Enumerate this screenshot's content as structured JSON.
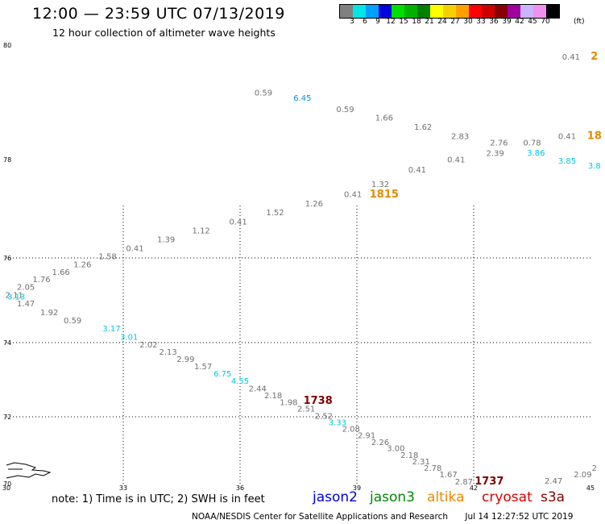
{
  "header": {
    "title": "12:00 — 23:59 UTC 07/13/2019",
    "subtitle": "12 hour collection of altimeter wave heights"
  },
  "scale": {
    "colors": [
      "#808080",
      "#00e5e5",
      "#00a0ff",
      "#0000dd",
      "#00dd00",
      "#00b000",
      "#008000",
      "#ffff00",
      "#f5d000",
      "#ffa000",
      "#ff0000",
      "#cc0000",
      "#880000",
      "#a000a0",
      "#c8b4ff",
      "#f090f0",
      "#000000"
    ],
    "labels": [
      "3",
      "6",
      "9",
      "12",
      "15",
      "18",
      "21",
      "24",
      "27",
      "30",
      "33",
      "36",
      "39",
      "42",
      "45",
      "70"
    ],
    "unit": "(ft)"
  },
  "axes": {
    "lat_labels": [
      {
        "text": "80",
        "lat": 80
      },
      {
        "text": "78",
        "lat": 78
      },
      {
        "text": "76",
        "lat": 76
      },
      {
        "text": "74",
        "lat": 74
      },
      {
        "text": "72",
        "lat": 72
      },
      {
        "text": "70",
        "lat": 70
      }
    ],
    "lon_labels": [
      {
        "text": "30",
        "lon": 30
      },
      {
        "text": "33",
        "lon": 33
      },
      {
        "text": "36",
        "lon": 36
      },
      {
        "text": "39",
        "lon": 39
      },
      {
        "text": "42",
        "lon": 42
      },
      {
        "text": "45",
        "lon": 45
      }
    ]
  },
  "colors": {
    "gray": "#707070",
    "cyan": "#00c8dc",
    "blue": "#0090d8",
    "orange": "#e08c00",
    "darkred": "#800000"
  },
  "observations": [
    {
      "text": "0.41",
      "lat": 79.75,
      "lon": 44.5,
      "color": "gray"
    },
    {
      "text": "2",
      "lat": 79.75,
      "lon": 45.1,
      "color": "orange",
      "big": true
    },
    {
      "text": "0.59",
      "lat": 79.12,
      "lon": 36.6,
      "color": "gray"
    },
    {
      "text": "6.45",
      "lat": 79.03,
      "lon": 37.6,
      "color": "blue"
    },
    {
      "text": "0.59",
      "lat": 78.83,
      "lon": 38.7,
      "color": "gray"
    },
    {
      "text": "1.66",
      "lat": 78.68,
      "lon": 39.7,
      "color": "gray"
    },
    {
      "text": "1.62",
      "lat": 78.52,
      "lon": 40.7,
      "color": "gray"
    },
    {
      "text": "2.83",
      "lat": 78.36,
      "lon": 41.65,
      "color": "gray"
    },
    {
      "text": "2.76",
      "lat": 78.25,
      "lon": 42.65,
      "color": "gray"
    },
    {
      "text": "0.78",
      "lat": 78.25,
      "lon": 43.5,
      "color": "gray"
    },
    {
      "text": "0.41",
      "lat": 78.36,
      "lon": 44.4,
      "color": "gray"
    },
    {
      "text": "18",
      "lat": 78.36,
      "lon": 45.1,
      "color": "orange",
      "big": true
    },
    {
      "text": "2.39",
      "lat": 78.06,
      "lon": 42.55,
      "color": "gray"
    },
    {
      "text": "3.86",
      "lat": 78.07,
      "lon": 43.6,
      "color": "cyan"
    },
    {
      "text": "3.85",
      "lat": 77.92,
      "lon": 44.4,
      "color": "cyan"
    },
    {
      "text": "3.8",
      "lat": 77.82,
      "lon": 45.1,
      "color": "cyan"
    },
    {
      "text": "0.41",
      "lat": 77.94,
      "lon": 41.55,
      "color": "gray"
    },
    {
      "text": "0.41",
      "lat": 77.74,
      "lon": 40.55,
      "color": "gray"
    },
    {
      "text": "1.32",
      "lat": 77.44,
      "lon": 39.6,
      "color": "gray"
    },
    {
      "text": "1815",
      "lat": 77.23,
      "lon": 39.7,
      "color": "orange",
      "big": true
    },
    {
      "text": "0.41",
      "lat": 77.24,
      "lon": 38.9,
      "color": "gray"
    },
    {
      "text": "1.26",
      "lat": 77.05,
      "lon": 37.9,
      "color": "gray"
    },
    {
      "text": "1.52",
      "lat": 76.87,
      "lon": 36.9,
      "color": "gray"
    },
    {
      "text": "0.41",
      "lat": 76.68,
      "lon": 35.95,
      "color": "gray"
    },
    {
      "text": "1.12",
      "lat": 76.5,
      "lon": 35.0,
      "color": "gray"
    },
    {
      "text": "1.39",
      "lat": 76.32,
      "lon": 34.1,
      "color": "gray"
    },
    {
      "text": "0.41",
      "lat": 76.14,
      "lon": 33.3,
      "color": "gray"
    },
    {
      "text": "1.58",
      "lat": 75.97,
      "lon": 32.6,
      "color": "gray"
    },
    {
      "text": "1.26",
      "lat": 75.78,
      "lon": 31.95,
      "color": "gray"
    },
    {
      "text": "1.66",
      "lat": 75.6,
      "lon": 31.4,
      "color": "gray"
    },
    {
      "text": "1.76",
      "lat": 75.43,
      "lon": 30.9,
      "color": "gray"
    },
    {
      "text": "2.05",
      "lat": 75.25,
      "lon": 30.5,
      "color": "gray"
    },
    {
      "text": "2.11",
      "lat": 75.06,
      "lon": 30.2,
      "color": "gray"
    },
    {
      "text": "3.13",
      "lat": 75.02,
      "lon": 30.25,
      "color": "cyan"
    },
    {
      "text": "1.47",
      "lat": 74.86,
      "lon": 30.5,
      "color": "gray"
    },
    {
      "text": "1.92",
      "lat": 74.65,
      "lon": 31.1,
      "color": "gray"
    },
    {
      "text": "0.59",
      "lat": 74.46,
      "lon": 31.7,
      "color": "gray"
    },
    {
      "text": "3.17",
      "lat": 74.27,
      "lon": 32.7,
      "color": "cyan"
    },
    {
      "text": "3.01",
      "lat": 74.07,
      "lon": 33.15,
      "color": "cyan"
    },
    {
      "text": "2.02",
      "lat": 73.87,
      "lon": 33.65,
      "color": "gray"
    },
    {
      "text": "2.13",
      "lat": 73.67,
      "lon": 34.15,
      "color": "gray"
    },
    {
      "text": "2.99",
      "lat": 73.48,
      "lon": 34.6,
      "color": "gray"
    },
    {
      "text": "1.57",
      "lat": 73.28,
      "lon": 35.05,
      "color": "gray"
    },
    {
      "text": "6.75",
      "lat": 73.09,
      "lon": 35.55,
      "color": "cyan"
    },
    {
      "text": "4.55",
      "lat": 72.89,
      "lon": 36.0,
      "color": "cyan"
    },
    {
      "text": "2.44",
      "lat": 72.69,
      "lon": 36.45,
      "color": "gray"
    },
    {
      "text": "2.18",
      "lat": 72.5,
      "lon": 36.85,
      "color": "gray"
    },
    {
      "text": "1.98",
      "lat": 72.32,
      "lon": 37.25,
      "color": "gray"
    },
    {
      "text": "1738",
      "lat": 72.35,
      "lon": 38.0,
      "color": "darkred",
      "big": true
    },
    {
      "text": "2.51",
      "lat": 72.14,
      "lon": 37.7,
      "color": "gray"
    },
    {
      "text": "2.52",
      "lat": 71.94,
      "lon": 38.15,
      "color": "gray"
    },
    {
      "text": "3.33",
      "lat": 71.75,
      "lon": 38.5,
      "color": "cyan"
    },
    {
      "text": "2.08",
      "lat": 71.55,
      "lon": 38.85,
      "color": "gray"
    },
    {
      "text": "2.91",
      "lat": 71.36,
      "lon": 39.25,
      "color": "gray"
    },
    {
      "text": "2.26",
      "lat": 71.16,
      "lon": 39.6,
      "color": "gray"
    },
    {
      "text": "3.00",
      "lat": 70.97,
      "lon": 40.0,
      "color": "gray"
    },
    {
      "text": "2.18",
      "lat": 70.77,
      "lon": 40.35,
      "color": "gray"
    },
    {
      "text": "2.31",
      "lat": 70.58,
      "lon": 40.65,
      "color": "gray"
    },
    {
      "text": "2.78",
      "lat": 70.38,
      "lon": 40.95,
      "color": "gray"
    },
    {
      "text": "1.67",
      "lat": 70.19,
      "lon": 41.35,
      "color": "gray"
    },
    {
      "text": "2.87",
      "lat": 69.98,
      "lon": 41.75,
      "color": "gray"
    },
    {
      "text": "1737",
      "lat": 69.97,
      "lon": 42.4,
      "color": "darkred",
      "big": true
    },
    {
      "text": "2.47",
      "lat": 70.0,
      "lon": 44.05,
      "color": "gray"
    },
    {
      "text": "2.09",
      "lat": 70.19,
      "lon": 44.8,
      "color": "gray"
    },
    {
      "text": "2",
      "lat": 70.38,
      "lon": 45.1,
      "color": "gray"
    }
  ],
  "footer": {
    "note": "note: 1) Time is in UTC; 2) SWH is in feet",
    "legend": [
      {
        "text": "jason2",
        "color": "#0000dd"
      },
      {
        "text": "jason3",
        "color": "#008800"
      },
      {
        "text": "altika",
        "color": "#ee8800"
      },
      {
        "text": "cryosat",
        "color": "#dd0000"
      },
      {
        "text": "s3a",
        "color": "#880000"
      }
    ],
    "credit": "NOAA/NESDIS Center for Satellite Applications and Research",
    "timestamp": "Jul 14 12:27:52 UTC 2019"
  }
}
